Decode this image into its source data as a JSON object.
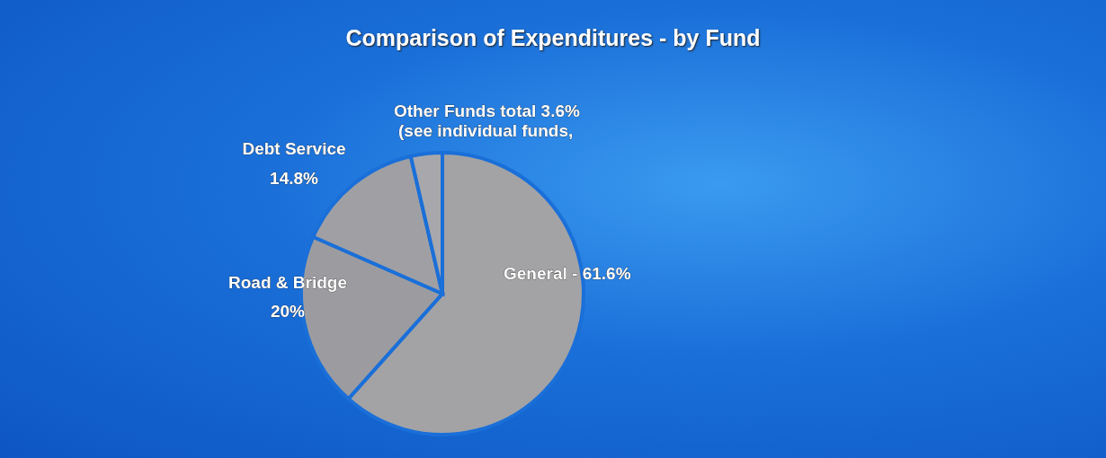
{
  "chart_data": {
    "type": "pie",
    "title": "Comparison of Expenditures - by Fund",
    "categories": [
      "General -",
      "Road & Bridge",
      "Debt Service",
      "Other Funds total"
    ],
    "values": [
      61.6,
      20,
      14.8,
      3.6
    ],
    "value_labels": [
      "61.6%",
      "20%",
      "14.8%",
      "3.6%"
    ],
    "colors": [
      "#a3a3a6",
      "#9c9ca0",
      "#a0a0a4",
      "#a8a8ac"
    ],
    "annotations": [
      "(see individual funds,"
    ],
    "legend": false
  }
}
